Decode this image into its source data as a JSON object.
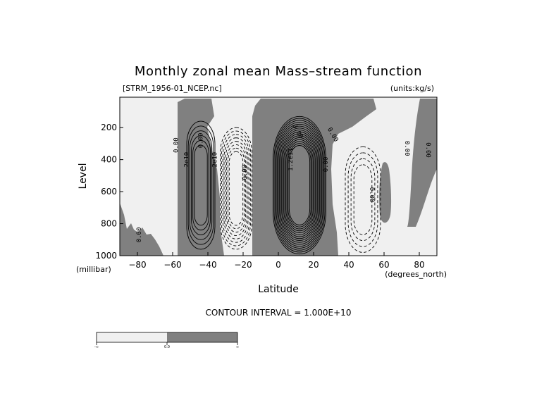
{
  "chart_data": {
    "type": "contour",
    "title": "Monthly zonal mean Mass–stream function",
    "subtitle_left": "[STRM_1956-01_NCEP.nc]",
    "subtitle_right": "(units:kg/s)",
    "xlabel": "Latitude",
    "xunits": "(degrees_north)",
    "ylabel": "Level",
    "yunits": "(millibar)",
    "xlim": [
      -90,
      90
    ],
    "ylim": [
      1000,
      10
    ],
    "y_reversed": true,
    "xticks": [
      -80,
      -60,
      -40,
      -20,
      0,
      20,
      40,
      60,
      80
    ],
    "xtick_labels": [
      "−80",
      "−60",
      "−40",
      "−20",
      "0",
      "20",
      "40",
      "60",
      "80"
    ],
    "yticks": [
      200,
      400,
      600,
      800,
      1000
    ],
    "ytick_labels": [
      "200",
      "400",
      "600",
      "800",
      "1000"
    ],
    "contour_interval_text": "CONTOUR INTERVAL = 1.000E+10",
    "shading": {
      "negative_color": "#f0f0f0",
      "positive_color": "#808080",
      "colorbar_labels": [
        "-∞",
        "0.0",
        "∞"
      ]
    },
    "contour_labels": [
      "0.00",
      "2e10",
      "0.00",
      "0.00",
      "2e10",
      "0.00",
      "0.00",
      "1.2e11",
      "0.00",
      "0.00",
      "0.00",
      "0.00",
      "0.00"
    ],
    "cells": [
      {
        "name": "southern-direct-cell",
        "sign": "positive",
        "lat_center": -44,
        "lev_center": 560,
        "lat_halfwidth": 8,
        "lev_halfwidth": 400,
        "max": 60000000000.0
      },
      {
        "name": "southern-ferrel-cell",
        "sign": "negative",
        "lat_center": -24,
        "lev_center": 580,
        "lat_halfwidth": 9,
        "lev_halfwidth": 380,
        "min": -80000000000.0
      },
      {
        "name": "hadley-cell",
        "sign": "positive",
        "lat_center": 12,
        "lev_center": 560,
        "lat_halfwidth": 15,
        "lev_halfwidth": 430,
        "max": 160000000000.0
      },
      {
        "name": "northern-ferrel-cell",
        "sign": "negative",
        "lat_center": 48,
        "lev_center": 650,
        "lat_halfwidth": 10,
        "lev_halfwidth": 330,
        "min": -40000000000.0
      }
    ]
  }
}
